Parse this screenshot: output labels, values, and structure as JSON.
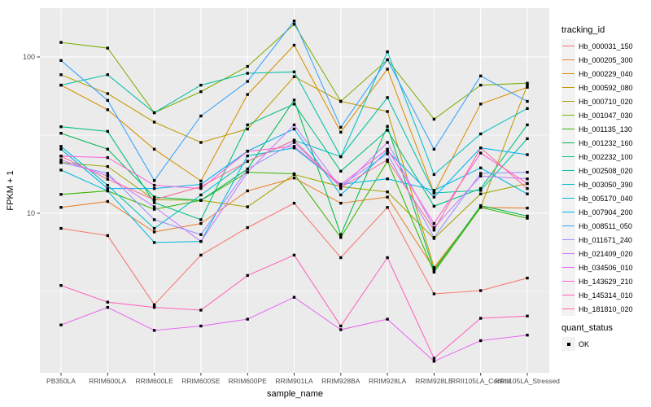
{
  "figure": {
    "background": "#FFFFFF",
    "panel_background": "#EBEBEB",
    "grid_color": "#FFFFFF",
    "axis_text_color": "#4D4D4D",
    "tick_color": "#333333",
    "point_color": "#000000",
    "legend_key_background": "#F2F2F2"
  },
  "chart_data": {
    "type": "line",
    "xlabel": "sample_name",
    "ylabel": "FPKM + 1",
    "y_scale": "log10",
    "ylim": [
      1,
      210
    ],
    "y_tick_labels": [
      "100",
      "10"
    ],
    "y_major_gridlines": [
      100,
      10
    ],
    "y_minor_gridlines": [
      31.6,
      3.16
    ],
    "grid": true,
    "legend_position": "right",
    "point_shape": "filled-square",
    "categories": [
      "PB350LA",
      "RRIM600LA",
      "RRIM600LE",
      "RRIM600SE",
      "RRIM600PE",
      "RRIM901LA",
      "RRIM928BA",
      "RRIM928LA",
      "RRIM928LE",
      "RRII105LA_Control",
      "RRII105LA_Stressed"
    ],
    "series": [
      {
        "name": "Hb_000031_150",
        "color": "#F8766D",
        "values": [
          8.0,
          7.2,
          2.6,
          5.4,
          8.1,
          11.6,
          5.2,
          10.9,
          3.05,
          3.2,
          3.85
        ]
      },
      {
        "name": "Hb_000205_300",
        "color": "#EA8331",
        "values": [
          10.9,
          11.9,
          7.6,
          8.6,
          13.9,
          16.8,
          11.6,
          12.7,
          4.4,
          10.9,
          10.8
        ]
      },
      {
        "name": "Hb_000229_040",
        "color": "#D89000",
        "values": [
          66,
          46,
          25.7,
          16.1,
          57.5,
          119,
          33,
          83.5,
          13.5,
          50,
          64
        ]
      },
      {
        "name": "Hb_000592_080",
        "color": "#C09B00",
        "values": [
          77,
          58.3,
          38.3,
          28.4,
          34.6,
          74.8,
          52,
          44.8,
          4.5,
          10.9,
          66
        ]
      },
      {
        "name": "Hb_000710_020",
        "color": "#A3A500",
        "values": [
          21.1,
          19.9,
          12.2,
          12.1,
          11.0,
          17.7,
          14.8,
          13.7,
          6.9,
          13.3,
          15.5
        ]
      },
      {
        "name": "Hb_001047_030",
        "color": "#7CAE00",
        "values": [
          124,
          114,
          44,
          60,
          87,
          162,
          52,
          96,
          40,
          66,
          68
        ]
      },
      {
        "name": "Hb_001135_130",
        "color": "#39B600",
        "values": [
          13.2,
          13.9,
          10.6,
          12.1,
          18.3,
          17.9,
          7.0,
          21.5,
          4.2,
          10.9,
          9.3
        ]
      },
      {
        "name": "Hb_001232_160",
        "color": "#00BB4E",
        "values": [
          32.5,
          25.7,
          12.7,
          12.1,
          19.2,
          53,
          7.3,
          36,
          4.3,
          11.2,
          9.6
        ]
      },
      {
        "name": "Hb_002232_100",
        "color": "#00BF7D",
        "values": [
          35.8,
          33.4,
          11.7,
          9.1,
          36.8,
          50,
          18.6,
          34,
          11.1,
          14.4,
          36.8
        ]
      },
      {
        "name": "Hb_002508_020",
        "color": "#00C1A3",
        "values": [
          66,
          77,
          44,
          66,
          78.7,
          80.3,
          23,
          55,
          13.5,
          14.0,
          30
        ]
      },
      {
        "name": "Hb_003050_390",
        "color": "#00BFC4",
        "values": [
          26.8,
          15.1,
          8.0,
          13.1,
          21.5,
          29.3,
          23,
          108,
          17.7,
          32.2,
          46.8
        ]
      },
      {
        "name": "Hb_005170_040",
        "color": "#00BAE0",
        "values": [
          18.9,
          13.9,
          6.5,
          6.6,
          23.3,
          26.2,
          15.3,
          16.6,
          14.0,
          19.5,
          13.3
        ]
      },
      {
        "name": "Hb_007904_200",
        "color": "#00B0F6",
        "values": [
          25.7,
          14.4,
          14.4,
          15.3,
          25.0,
          34.6,
          13.1,
          25.0,
          12.7,
          26.2,
          23.7
        ]
      },
      {
        "name": "Hb_008511_050",
        "color": "#35A2FF",
        "values": [
          95,
          52.8,
          16.2,
          41.9,
          69.8,
          170,
          35.5,
          96,
          25.7,
          75.6,
          52
        ]
      },
      {
        "name": "Hb_011671_240",
        "color": "#9590FF",
        "values": [
          21.1,
          18.0,
          9.1,
          7.3,
          19.2,
          28.4,
          15.0,
          24.0,
          7.0,
          18.0,
          18.3
        ]
      },
      {
        "name": "Hb_021409_020",
        "color": "#C77CFF",
        "values": [
          22.0,
          17.3,
          11.0,
          6.6,
          18.3,
          36.8,
          14.4,
          28.4,
          8.1,
          17.3,
          16.6
        ]
      },
      {
        "name": "Hb_034506_010",
        "color": "#E76BF3",
        "values": [
          1.93,
          2.5,
          1.78,
          1.9,
          2.1,
          2.9,
          1.8,
          2.1,
          1.13,
          1.53,
          1.66
        ]
      },
      {
        "name": "Hb_143629_210",
        "color": "#FA62DB",
        "values": [
          23.2,
          22.7,
          15.1,
          14.4,
          24.9,
          26.8,
          15.3,
          25.7,
          8.6,
          24.3,
          15.5
        ]
      },
      {
        "name": "Hb_145314_010",
        "color": "#FF62BC",
        "values": [
          3.45,
          2.7,
          2.5,
          2.4,
          4.0,
          5.4,
          1.9,
          5.2,
          1.18,
          2.13,
          2.2
        ]
      },
      {
        "name": "Hb_181810_020",
        "color": "#FF6A98",
        "values": [
          23.2,
          16.5,
          12.2,
          14.8,
          21.5,
          29.3,
          14.6,
          22.0,
          7.8,
          26.2,
          14.4
        ]
      }
    ],
    "legend": {
      "color_legend_title": "tracking_id",
      "shape_legend_title": "quant_status",
      "shape_legend_items": [
        {
          "label": "OK",
          "shape": "filled-square",
          "color": "#000000"
        }
      ]
    }
  }
}
